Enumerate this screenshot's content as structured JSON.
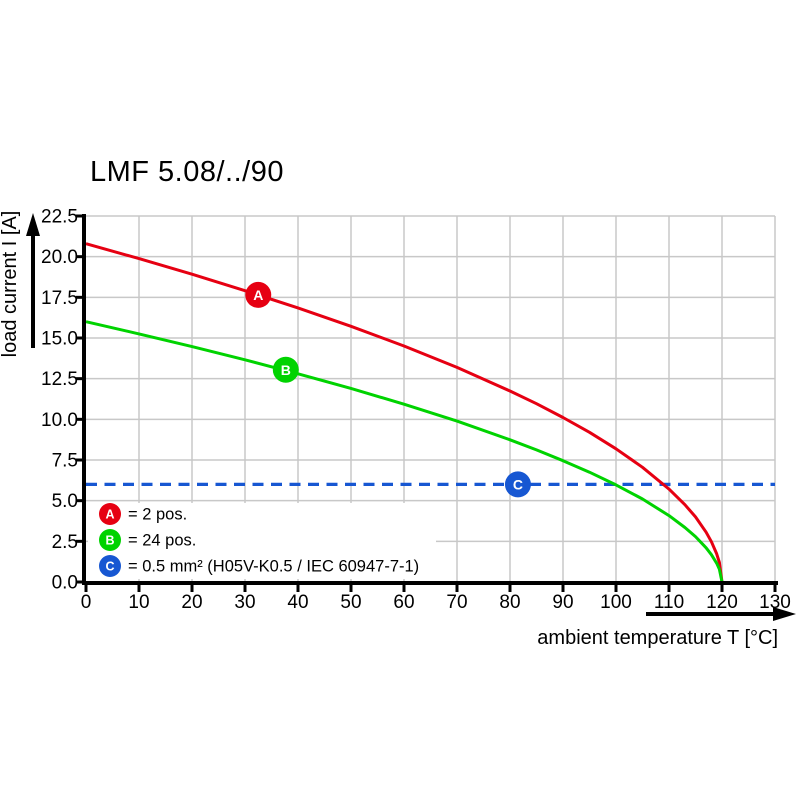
{
  "title": "LMF 5.08/../90",
  "colors": {
    "red": "#e60012",
    "green": "#00d300",
    "blue": "#1757d2",
    "grid": "#c8c8c8",
    "axis": "#000000"
  },
  "chart_data": {
    "type": "line",
    "title": "LMF 5.08/../90",
    "xlabel": "ambient temperature T [°C]",
    "ylabel": "load current I [A]",
    "xlim": [
      0,
      130
    ],
    "ylim": [
      0,
      22.5
    ],
    "grid": true,
    "x_ticks": [
      0,
      10,
      20,
      30,
      40,
      50,
      60,
      70,
      80,
      90,
      100,
      110,
      120,
      130
    ],
    "y_tick_values": [
      0,
      2.5,
      5,
      7.5,
      10,
      12.5,
      15,
      17.5,
      20,
      22.5
    ],
    "y_tick_labels": [
      "0.0",
      "2.5",
      "5.0",
      "7.5",
      "10.0",
      "12.5",
      "15.0",
      "17.5",
      "20.0",
      "22.5"
    ],
    "legend_position": "inside bottom-left",
    "series": [
      {
        "name": "A",
        "legend_label": "= 2 pos.",
        "color": "#e60012",
        "style": "solid",
        "marker": {
          "letter": "A",
          "T": 32.5,
          "I": 17.65
        },
        "points": [
          [
            0,
            20.8
          ],
          [
            10,
            19.88
          ],
          [
            20,
            18.92
          ],
          [
            30,
            17.91
          ],
          [
            40,
            16.85
          ],
          [
            50,
            15.72
          ],
          [
            60,
            14.51
          ],
          [
            70,
            13.19
          ],
          [
            80,
            11.74
          ],
          [
            85,
            10.96
          ],
          [
            90,
            10.11
          ],
          [
            95,
            9.2
          ],
          [
            100,
            8.19
          ],
          [
            105,
            7.05
          ],
          [
            110,
            5.71
          ],
          [
            113,
            4.75
          ],
          [
            115,
            4.0
          ],
          [
            117,
            3.06
          ],
          [
            118,
            2.48
          ],
          [
            119,
            1.73
          ],
          [
            119.5,
            1.2
          ],
          [
            120,
            0
          ]
        ]
      },
      {
        "name": "B",
        "legend_label": "= 24 pos.",
        "color": "#00d300",
        "style": "solid",
        "marker": {
          "letter": "B",
          "T": 37.7,
          "I": 13.05
        },
        "points": [
          [
            0,
            16.0
          ],
          [
            10,
            15.25
          ],
          [
            20,
            14.47
          ],
          [
            30,
            13.66
          ],
          [
            40,
            12.8
          ],
          [
            50,
            11.9
          ],
          [
            60,
            10.93
          ],
          [
            70,
            9.89
          ],
          [
            80,
            8.74
          ],
          [
            85,
            8.12
          ],
          [
            90,
            7.46
          ],
          [
            95,
            6.75
          ],
          [
            100,
            5.97
          ],
          [
            105,
            5.1
          ],
          [
            110,
            4.08
          ],
          [
            113,
            3.35
          ],
          [
            115,
            2.79
          ],
          [
            117,
            2.1
          ],
          [
            118,
            1.68
          ],
          [
            119,
            1.15
          ],
          [
            119.5,
            0.78
          ],
          [
            120,
            0
          ]
        ]
      },
      {
        "name": "C",
        "legend_label": "= 0.5 mm² (H05V-K0.5 / IEC 60947-7-1)",
        "color": "#1757d2",
        "style": "dashed",
        "marker": {
          "letter": "C",
          "T": 81.5,
          "I": 6.0
        },
        "points": [
          [
            0,
            6.0
          ],
          [
            130,
            6.0
          ]
        ]
      }
    ]
  }
}
